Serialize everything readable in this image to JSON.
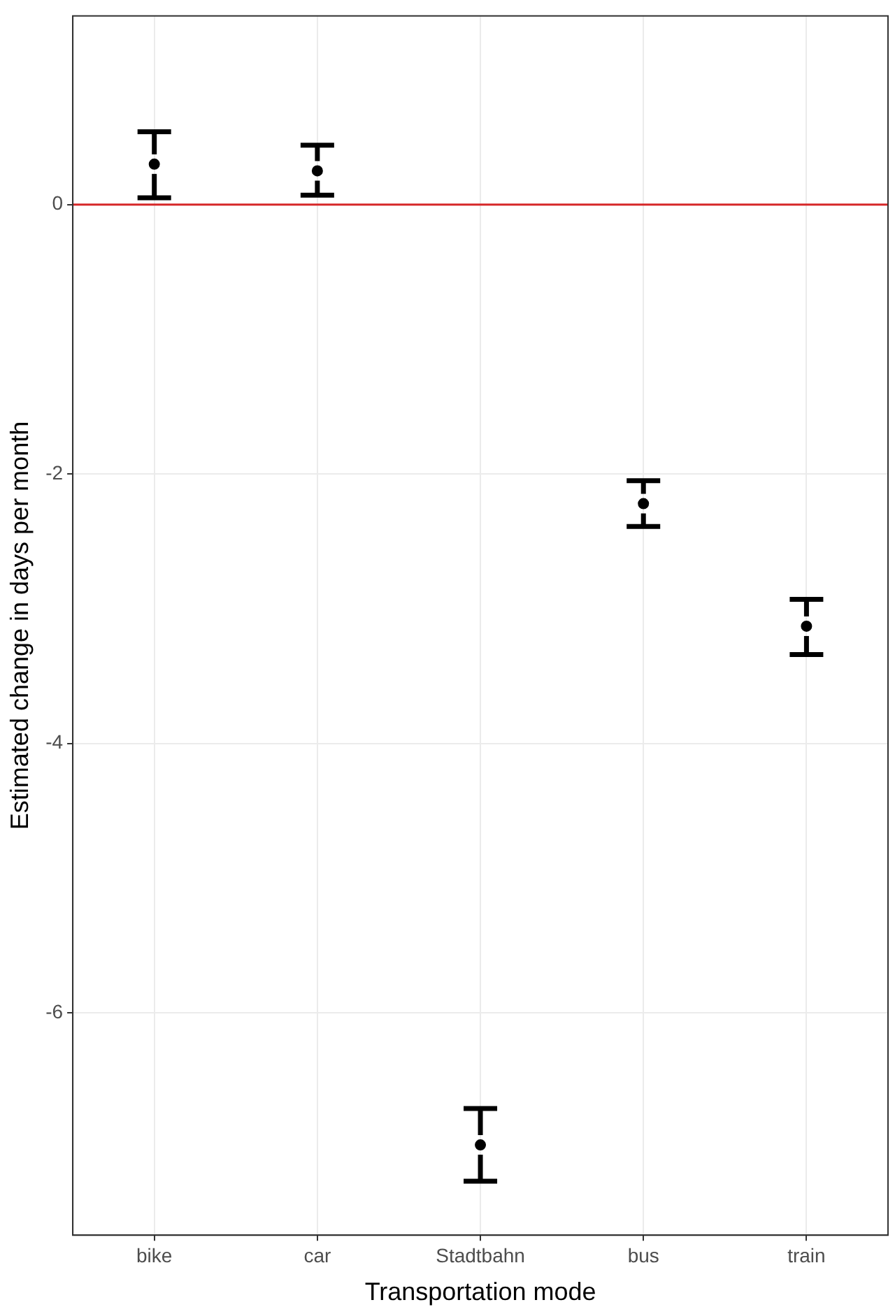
{
  "chart_data": {
    "type": "scatter",
    "xlabel": "Transportation mode",
    "ylabel": "Estimated change in days per month",
    "categories": [
      "bike",
      "car",
      "Stadtbahn",
      "bus",
      "train"
    ],
    "color": "#000000",
    "values": [
      0.3,
      0.25,
      -6.98,
      -2.22,
      -3.13
    ],
    "errors": [
      [
        0.05,
        0.54
      ],
      [
        0.07,
        0.44
      ],
      [
        -7.25,
        -6.71
      ],
      [
        -2.39,
        -2.05
      ],
      [
        -3.34,
        -2.93
      ]
    ],
    "ylim": [
      -7.65,
      1.4
    ],
    "yticks": [
      -6,
      -4,
      -2,
      0
    ],
    "grid": true,
    "marker": "circle",
    "legend": false,
    "ref_lines": [
      {
        "axis": "y",
        "value": 0,
        "color": "#d62728"
      }
    ]
  }
}
